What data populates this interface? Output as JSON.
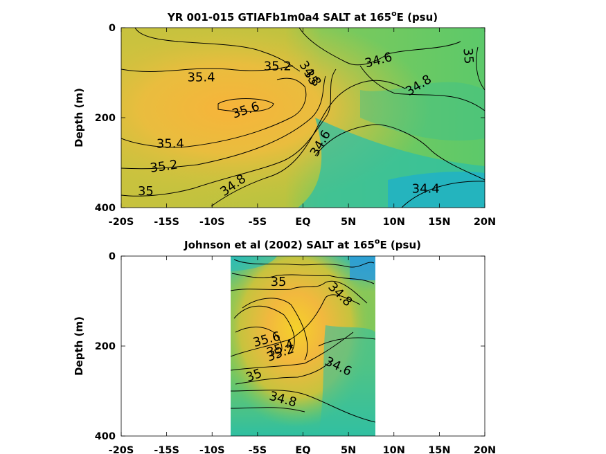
{
  "chart_data": [
    {
      "type": "contour",
      "title_main": "YR 001-015 GTIAFb1m0a4 SALT at 165",
      "title_sup": "o",
      "title_end": "E (psu)",
      "ylabel": "Depth (m)",
      "xlim": [
        -20,
        20
      ],
      "ylim": [
        0,
        400
      ],
      "y_reversed": true,
      "xticks": [
        {
          "v": -20,
          "label": "-20S"
        },
        {
          "v": -15,
          "label": "-15S"
        },
        {
          "v": -10,
          "label": "-10S"
        },
        {
          "v": -5,
          "label": "-5S"
        },
        {
          "v": 0,
          "label": "EQ"
        },
        {
          "v": 5,
          "label": "5N"
        },
        {
          "v": 10,
          "label": "10N"
        },
        {
          "v": 15,
          "label": "15N"
        },
        {
          "v": 20,
          "label": "20N"
        }
      ],
      "yticks": [
        {
          "v": 0,
          "label": "0"
        },
        {
          "v": 200,
          "label": "200"
        },
        {
          "v": 400,
          "label": "400"
        }
      ],
      "contour_labels": [
        {
          "text": "35.2",
          "x": -2.8,
          "y": 85,
          "rot": 0
        },
        {
          "text": "35.4",
          "x": -11.2,
          "y": 110,
          "rot": 0
        },
        {
          "text": "35.6",
          "x": -6.3,
          "y": 183,
          "rot": -18
        },
        {
          "text": "35.4",
          "x": -14.6,
          "y": 258,
          "rot": 0
        },
        {
          "text": "35.2",
          "x": -15.3,
          "y": 308,
          "rot": -8
        },
        {
          "text": "35",
          "x": -17.3,
          "y": 363,
          "rot": 0
        },
        {
          "text": "34.8",
          "x": -7.7,
          "y": 350,
          "rot": -35
        },
        {
          "text": "34.8",
          "x": 0.8,
          "y": 102,
          "rot": 55
        },
        {
          "text": "35",
          "x": 0.9,
          "y": 110,
          "rot": 60
        },
        {
          "text": "34.6",
          "x": 8.3,
          "y": 72,
          "rot": -15
        },
        {
          "text": "34.8",
          "x": 12.7,
          "y": 128,
          "rot": -32
        },
        {
          "text": "35",
          "x": 18.2,
          "y": 63,
          "rot": 85
        },
        {
          "text": "34.6",
          "x": 1.9,
          "y": 257,
          "rot": -60
        },
        {
          "text": "34.4",
          "x": 13.5,
          "y": 358,
          "rot": 0
        }
      ]
    },
    {
      "type": "contour",
      "title_main": "Johnson et al (2002) SALT at 165",
      "title_sup": "o",
      "title_end": "E (psu)",
      "ylabel": "Depth (m)",
      "xlim": [
        -20,
        20
      ],
      "ylim": [
        0,
        400
      ],
      "y_reversed": true,
      "data_x_range": [
        -8,
        8
      ],
      "xticks": [
        {
          "v": -20,
          "label": "-20S"
        },
        {
          "v": -15,
          "label": "-15S"
        },
        {
          "v": -10,
          "label": "-10S"
        },
        {
          "v": -5,
          "label": "-5S"
        },
        {
          "v": 0,
          "label": "EQ"
        },
        {
          "v": 5,
          "label": "5N"
        },
        {
          "v": 10,
          "label": "10N"
        },
        {
          "v": 15,
          "label": "15N"
        },
        {
          "v": 20,
          "label": "20N"
        }
      ],
      "yticks": [
        {
          "v": 0,
          "label": "0"
        },
        {
          "v": 200,
          "label": "200"
        },
        {
          "v": 400,
          "label": "400"
        }
      ],
      "contour_labels": [
        {
          "text": "35",
          "x": -2.7,
          "y": 57,
          "rot": 0
        },
        {
          "text": "34.8",
          "x": 4.1,
          "y": 85,
          "rot": 45
        },
        {
          "text": "35.6",
          "x": -4.0,
          "y": 185,
          "rot": -15
        },
        {
          "text": "35.4",
          "x": -2.5,
          "y": 205,
          "rot": -20
        },
        {
          "text": "35.2",
          "x": -2.5,
          "y": 215,
          "rot": -20
        },
        {
          "text": "35",
          "x": -5.4,
          "y": 265,
          "rot": -20
        },
        {
          "text": "34.6",
          "x": 3.9,
          "y": 245,
          "rot": 25
        },
        {
          "text": "34.8",
          "x": -2.2,
          "y": 318,
          "rot": 15
        }
      ]
    }
  ]
}
